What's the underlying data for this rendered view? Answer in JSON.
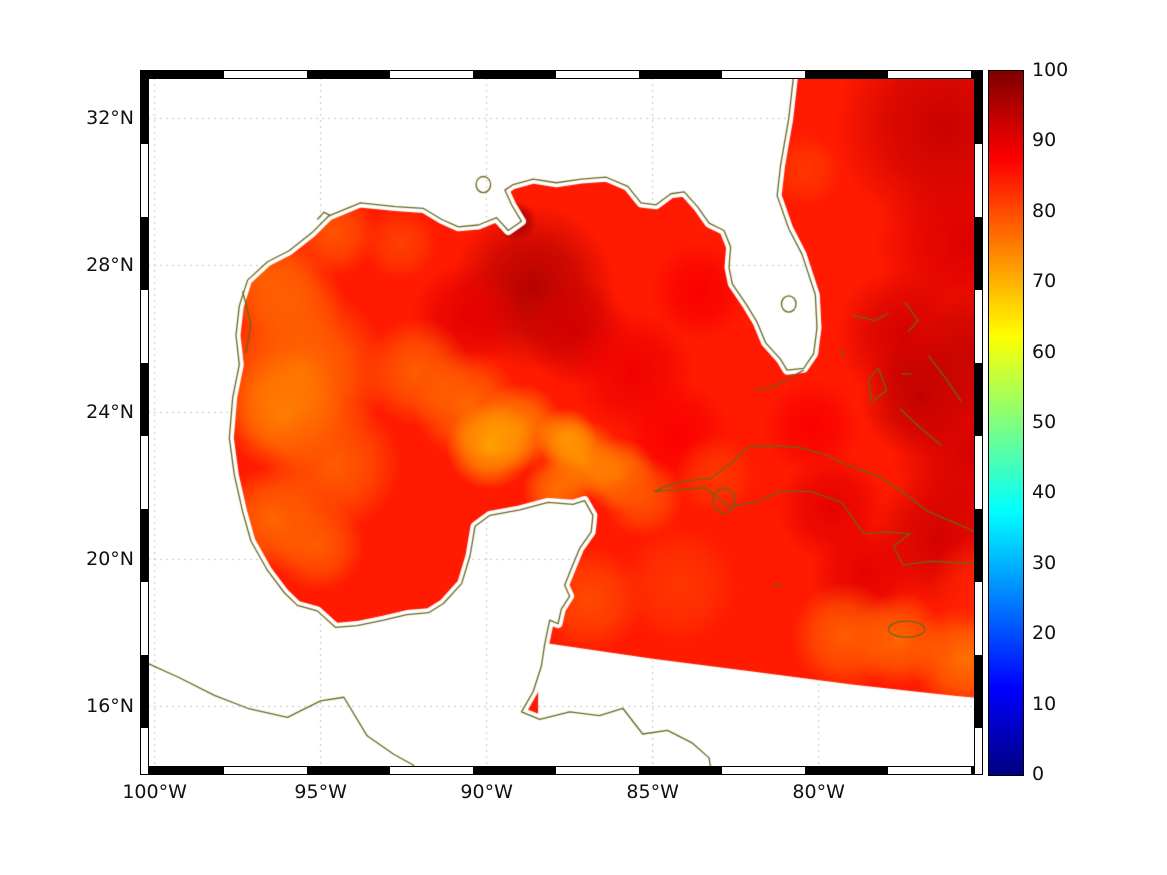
{
  "figure": {
    "kind": "geographic heatmap with colorbar",
    "region": "Gulf of Mexico, western Caribbean and western North Atlantic",
    "background_color": "#ffffff"
  },
  "map": {
    "coastline_color": "#6a661c",
    "land_color": "#ffffff",
    "grid_color": "#c4c4c4",
    "extent": {
      "lon_west": -100.2,
      "lon_east": -75.1,
      "lat_south": 14.4,
      "lat_north": 33.1
    }
  },
  "axes": {
    "x_tick_labels": [
      "100°W",
      "95°W",
      "90°W",
      "85°W",
      "80°W"
    ],
    "x_tick_lons": [
      -100,
      -95,
      -90,
      -85,
      -80
    ],
    "y_tick_labels": [
      "32°N",
      "28°N",
      "24°N",
      "20°N",
      "16°N"
    ],
    "y_tick_lats": [
      32,
      28,
      24,
      20,
      16
    ],
    "grid_style": "dotted",
    "frame_style": "black-and-white checkered border"
  },
  "colorbar": {
    "colormap": "jet",
    "min": 0,
    "max": 100,
    "tick_labels": [
      "100",
      "90",
      "80",
      "70",
      "60",
      "50",
      "40",
      "30",
      "20",
      "10",
      "0"
    ],
    "tick_values": [
      100,
      90,
      80,
      70,
      60,
      50,
      40,
      30,
      20,
      10,
      0
    ]
  },
  "chart_data": {
    "type": "heatmap",
    "colormap": "jet",
    "color_range": [
      0,
      100
    ],
    "observed_value_range": [
      70,
      97
    ],
    "background_value": 85,
    "no_data": "land areas and ocean south of the slanted swath edge (~17.5°N west to ~16.2°N east) are white",
    "features": [
      {
        "lon": -88.6,
        "lat": 27.4,
        "radius_deg": 2.4,
        "value": 95
      },
      {
        "lon": -87.3,
        "lat": 26.2,
        "radius_deg": 1.6,
        "value": 92
      },
      {
        "lon": -90.6,
        "lat": 26.6,
        "radius_deg": 1.6,
        "value": 90
      },
      {
        "lon": -89.1,
        "lat": 29.2,
        "radius_deg": 0.6,
        "value": 97
      },
      {
        "lon": -85.6,
        "lat": 25.1,
        "radius_deg": 1.8,
        "value": 89
      },
      {
        "lon": -84.3,
        "lat": 23.4,
        "radius_deg": 1.6,
        "value": 88
      },
      {
        "lon": -83.6,
        "lat": 27.3,
        "radius_deg": 1.4,
        "value": 88
      },
      {
        "lon": -76.2,
        "lat": 31.8,
        "radius_deg": 3.2,
        "value": 93
      },
      {
        "lon": -75.6,
        "lat": 28.6,
        "radius_deg": 2.6,
        "value": 91
      },
      {
        "lon": -77.4,
        "lat": 26.1,
        "radius_deg": 2.0,
        "value": 92
      },
      {
        "lon": -76.9,
        "lat": 24.4,
        "radius_deg": 1.8,
        "value": 94
      },
      {
        "lon": -75.3,
        "lat": 22.9,
        "radius_deg": 2.4,
        "value": 92
      },
      {
        "lon": -76.4,
        "lat": 20.6,
        "radius_deg": 2.0,
        "value": 92
      },
      {
        "lon": -79.6,
        "lat": 21.4,
        "radius_deg": 1.6,
        "value": 90
      },
      {
        "lon": -78.6,
        "lat": 19.6,
        "radius_deg": 1.6,
        "value": 90
      },
      {
        "lon": -74.9,
        "lat": 25.6,
        "radius_deg": 2.0,
        "value": 94
      },
      {
        "lon": -80.2,
        "lat": 23.6,
        "radius_deg": 1.4,
        "value": 88
      },
      {
        "lon": -95.6,
        "lat": 25.1,
        "radius_deg": 2.6,
        "value": 76
      },
      {
        "lon": -96.6,
        "lat": 27.6,
        "radius_deg": 1.6,
        "value": 78
      },
      {
        "lon": -96.1,
        "lat": 24.0,
        "radius_deg": 1.8,
        "value": 75
      },
      {
        "lon": -94.6,
        "lat": 22.6,
        "radius_deg": 2.0,
        "value": 78
      },
      {
        "lon": -96.4,
        "lat": 21.1,
        "radius_deg": 1.6,
        "value": 77
      },
      {
        "lon": -95.1,
        "lat": 20.4,
        "radius_deg": 1.4,
        "value": 78
      },
      {
        "lon": -92.1,
        "lat": 25.1,
        "radius_deg": 1.6,
        "value": 78
      },
      {
        "lon": -90.6,
        "lat": 24.2,
        "radius_deg": 1.6,
        "value": 77
      },
      {
        "lon": -89.0,
        "lat": 23.6,
        "radius_deg": 1.3,
        "value": 74
      },
      {
        "lon": -89.9,
        "lat": 23.1,
        "radius_deg": 1.3,
        "value": 71
      },
      {
        "lon": -87.1,
        "lat": 22.7,
        "radius_deg": 1.2,
        "value": 73
      },
      {
        "lon": -86.0,
        "lat": 22.3,
        "radius_deg": 1.1,
        "value": 74
      },
      {
        "lon": -87.6,
        "lat": 23.3,
        "radius_deg": 0.9,
        "value": 72
      },
      {
        "lon": -87.9,
        "lat": 21.9,
        "radius_deg": 1.0,
        "value": 76
      },
      {
        "lon": -94.6,
        "lat": 28.9,
        "radius_deg": 1.3,
        "value": 79
      },
      {
        "lon": -92.6,
        "lat": 28.6,
        "radius_deg": 1.1,
        "value": 81
      },
      {
        "lon": -95.9,
        "lat": 27.0,
        "radius_deg": 1.6,
        "value": 78
      },
      {
        "lon": -85.3,
        "lat": 21.7,
        "radius_deg": 1.2,
        "value": 79
      },
      {
        "lon": -77.6,
        "lat": 17.8,
        "radius_deg": 1.4,
        "value": 77
      },
      {
        "lon": -75.6,
        "lat": 17.3,
        "radius_deg": 1.6,
        "value": 76
      },
      {
        "lon": -79.2,
        "lat": 17.9,
        "radius_deg": 1.6,
        "value": 78
      },
      {
        "lon": -80.4,
        "lat": 30.6,
        "radius_deg": 1.1,
        "value": 82
      },
      {
        "lon": -83.1,
        "lat": 22.3,
        "radius_deg": 1.2,
        "value": 82
      },
      {
        "lon": -86.9,
        "lat": 18.9,
        "radius_deg": 1.6,
        "value": 80
      },
      {
        "lon": -84.2,
        "lat": 19.3,
        "radius_deg": 1.8,
        "value": 82
      },
      {
        "lon": -75.2,
        "lat": 19.3,
        "radius_deg": 1.4,
        "value": 84
      }
    ]
  }
}
